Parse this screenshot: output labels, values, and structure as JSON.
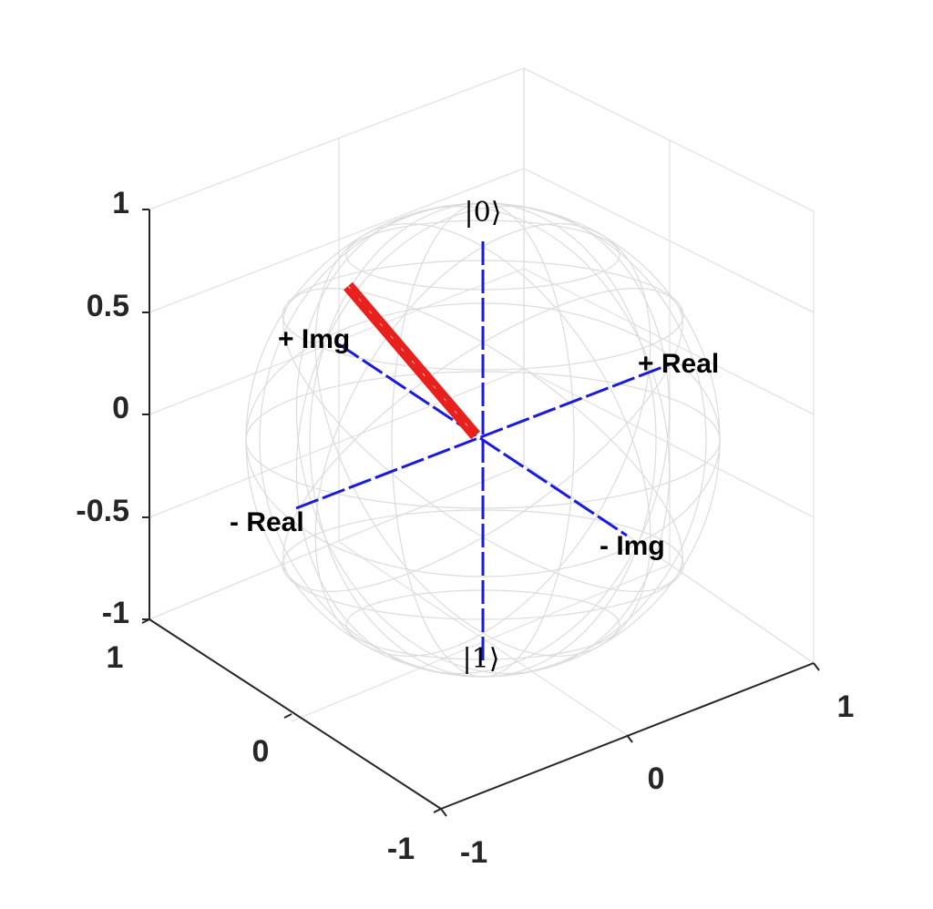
{
  "figure": {
    "z_ticks": [
      "1",
      "0.5",
      "0",
      "-0.5",
      "-1"
    ],
    "y_ticks": [
      "1",
      "0",
      "-1"
    ],
    "x_ticks": [
      "1",
      "0",
      "-1"
    ],
    "labels": {
      "ket0": "|0⟩",
      "ket1": "|1⟩",
      "plus_img": "+ Img",
      "plus_real": "+ Real",
      "minus_real": "- Real",
      "minus_img": "- Img"
    },
    "state_vector": {
      "color": "#e8201e"
    },
    "axis_color": "#1a1adc",
    "sphere_color": "#dcdcdc"
  }
}
